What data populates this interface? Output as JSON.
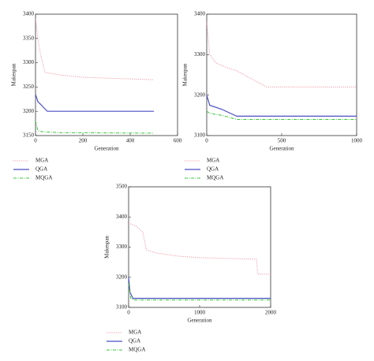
{
  "chart_data": [
    {
      "type": "line",
      "x_label": "Generation",
      "y_label": "Makespan",
      "xlim": [
        0,
        600
      ],
      "xticks": [
        0,
        200,
        400,
        600
      ],
      "ylim": [
        3150,
        3400
      ],
      "yticks": [
        3150,
        3200,
        3250,
        3300,
        3350,
        3400
      ],
      "series": [
        {
          "name": "MGA",
          "color": "#f08a9a",
          "dash": "1,1.5",
          "x": [
            0,
            10,
            20,
            30,
            40,
            100,
            200,
            500
          ],
          "values": [
            3390,
            3350,
            3320,
            3300,
            3280,
            3275,
            3270,
            3265
          ]
        },
        {
          "name": "QGA",
          "color": "#4a4fc4",
          "dash": "none",
          "x": [
            0,
            10,
            20,
            40,
            50,
            500
          ],
          "values": [
            3235,
            3220,
            3215,
            3205,
            3200,
            3200
          ]
        },
        {
          "name": "MQGA",
          "color": "#3cc43c",
          "dash": "4,1.5,1,1.5",
          "x": [
            0,
            10,
            30,
            100,
            500
          ],
          "values": [
            3180,
            3160,
            3158,
            3156,
            3155
          ]
        }
      ]
    },
    {
      "type": "line",
      "x_label": "Generation",
      "y_label": "Makespan",
      "xlim": [
        0,
        1000
      ],
      "xticks": [
        0,
        500,
        1000
      ],
      "ylim": [
        3100,
        3400
      ],
      "yticks": [
        3100,
        3200,
        3300,
        3400
      ],
      "series": [
        {
          "name": "MGA",
          "color": "#f08a9a",
          "dash": "1,1.5",
          "x": [
            0,
            20,
            60,
            120,
            200,
            400,
            1000
          ],
          "values": [
            3380,
            3300,
            3280,
            3270,
            3260,
            3220,
            3220
          ]
        },
        {
          "name": "QGA",
          "color": "#4a4fc4",
          "dash": "none",
          "x": [
            0,
            20,
            100,
            200,
            1000
          ],
          "values": [
            3200,
            3175,
            3165,
            3148,
            3148
          ]
        },
        {
          "name": "MQGA",
          "color": "#3cc43c",
          "dash": "4,1.5,1,1.5",
          "x": [
            0,
            20,
            100,
            200,
            1000
          ],
          "values": [
            3160,
            3155,
            3150,
            3140,
            3140
          ]
        }
      ]
    },
    {
      "type": "line",
      "x_label": "Generation",
      "y_label": "Makespan",
      "xlim": [
        0,
        2000
      ],
      "xticks": [
        0,
        1000,
        2000
      ],
      "ylim": [
        3100,
        3500
      ],
      "yticks": [
        3100,
        3200,
        3300,
        3400,
        3500
      ],
      "series": [
        {
          "name": "MGA",
          "color": "#f08a9a",
          "dash": "1,1.5",
          "x": [
            0,
            100,
            200,
            250,
            400,
            700,
            1000,
            1800,
            1820,
            2000
          ],
          "values": [
            3380,
            3370,
            3350,
            3290,
            3280,
            3270,
            3265,
            3260,
            3210,
            3210
          ]
        },
        {
          "name": "QGA",
          "color": "#4a4fc4",
          "dash": "none",
          "x": [
            0,
            20,
            60,
            2000
          ],
          "values": [
            3200,
            3150,
            3130,
            3130
          ]
        },
        {
          "name": "MQGA",
          "color": "#3cc43c",
          "dash": "4,1.5,1,1.5",
          "x": [
            0,
            30,
            80,
            2000
          ],
          "values": [
            3180,
            3130,
            3125,
            3125
          ]
        }
      ]
    }
  ]
}
